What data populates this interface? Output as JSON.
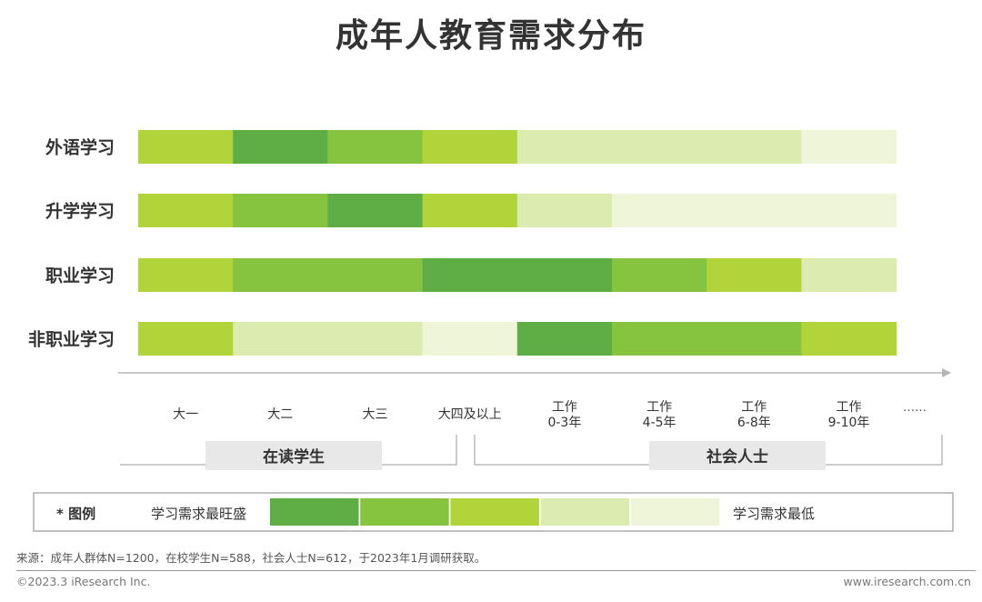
{
  "title": "成年人教育需求分布",
  "chart_data": {
    "type": "heatmap",
    "rows": [
      "外语学习",
      "升学学习",
      "职业学习",
      "非职业学习"
    ],
    "columns": [
      "大一",
      "大二",
      "大三",
      "大四及以上",
      "工作\n0-3年",
      "工作\n4-5年",
      "工作\n6-8年",
      "工作\n9-10年"
    ],
    "axis_ellipsis": "……",
    "levels": [
      [
        3,
        5,
        4,
        3,
        2,
        2,
        2,
        1
      ],
      [
        3,
        4,
        5,
        3,
        2,
        1,
        1,
        1
      ],
      [
        3,
        4,
        4,
        5,
        5,
        4,
        3,
        2
      ],
      [
        3,
        2,
        2,
        1,
        5,
        4,
        4,
        3
      ]
    ],
    "groups": [
      {
        "label": "在读学生",
        "columns": [
          0,
          3
        ]
      },
      {
        "label": "社会人士",
        "columns": [
          4,
          7
        ]
      }
    ],
    "legend": {
      "title": "* 图例",
      "high_label": "学习需求最旺盛",
      "low_label": "学习需求最低",
      "levels": [
        5,
        4,
        3,
        2,
        1
      ]
    },
    "level_colors": {
      "5": "#5fae45",
      "4": "#86c440",
      "3": "#b0d43a",
      "2": "#dcebb0",
      "1": "#eef5d9"
    }
  },
  "source": "来源：成年人群体N=1200，在校学生N=588，社会人士N=612，于2023年1月调研获取。",
  "copyright": "©2023.3 iResearch Inc.",
  "website": "www.iresearch.com.cn"
}
